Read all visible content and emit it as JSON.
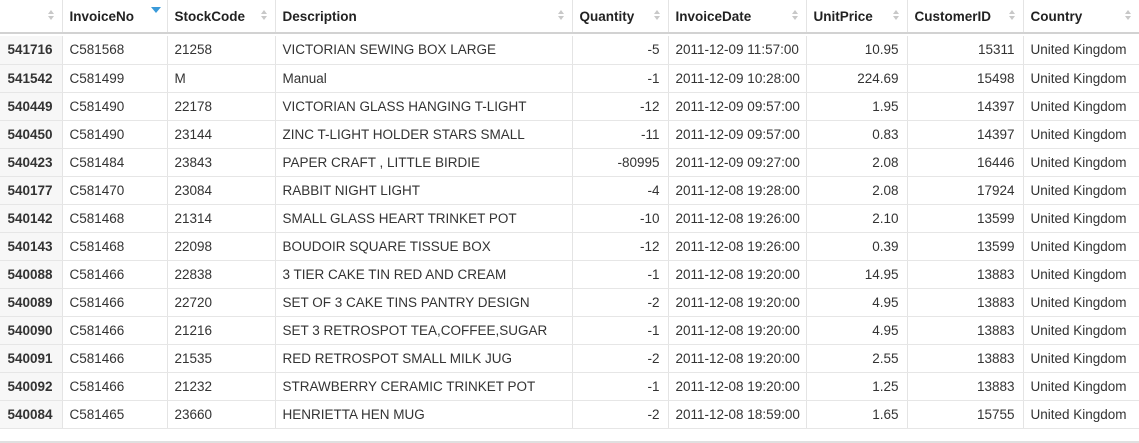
{
  "columns": [
    "",
    "InvoiceNo",
    "StockCode",
    "Description",
    "Quantity",
    "InvoiceDate",
    "UnitPrice",
    "CustomerID",
    "Country"
  ],
  "sorted_column": "InvoiceNo",
  "sort_indicator_color": "#3a9ad9",
  "rows": [
    [
      "541716",
      "C581568",
      "21258",
      "VICTORIAN SEWING BOX LARGE",
      "-5",
      "2011-12-09 11:57:00",
      "10.95",
      "15311",
      "United Kingdom"
    ],
    [
      "541542",
      "C581499",
      "M",
      "Manual",
      "-1",
      "2011-12-09 10:28:00",
      "224.69",
      "15498",
      "United Kingdom"
    ],
    [
      "540449",
      "C581490",
      "22178",
      "VICTORIAN GLASS HANGING T-LIGHT",
      "-12",
      "2011-12-09 09:57:00",
      "1.95",
      "14397",
      "United Kingdom"
    ],
    [
      "540450",
      "C581490",
      "23144",
      "ZINC T-LIGHT HOLDER STARS SMALL",
      "-11",
      "2011-12-09 09:57:00",
      "0.83",
      "14397",
      "United Kingdom"
    ],
    [
      "540423",
      "C581484",
      "23843",
      "PAPER CRAFT , LITTLE BIRDIE",
      "-80995",
      "2011-12-09 09:27:00",
      "2.08",
      "16446",
      "United Kingdom"
    ],
    [
      "540177",
      "C581470",
      "23084",
      "RABBIT NIGHT LIGHT",
      "-4",
      "2011-12-08 19:28:00",
      "2.08",
      "17924",
      "United Kingdom"
    ],
    [
      "540142",
      "C581468",
      "21314",
      "SMALL GLASS HEART TRINKET POT",
      "-10",
      "2011-12-08 19:26:00",
      "2.10",
      "13599",
      "United Kingdom"
    ],
    [
      "540143",
      "C581468",
      "22098",
      "BOUDOIR SQUARE TISSUE BOX",
      "-12",
      "2011-12-08 19:26:00",
      "0.39",
      "13599",
      "United Kingdom"
    ],
    [
      "540088",
      "C581466",
      "22838",
      "3 TIER CAKE TIN RED AND CREAM",
      "-1",
      "2011-12-08 19:20:00",
      "14.95",
      "13883",
      "United Kingdom"
    ],
    [
      "540089",
      "C581466",
      "22720",
      "SET OF 3 CAKE TINS PANTRY DESIGN",
      "-2",
      "2011-12-08 19:20:00",
      "4.95",
      "13883",
      "United Kingdom"
    ],
    [
      "540090",
      "C581466",
      "21216",
      "SET 3 RETROSPOT TEA,COFFEE,SUGAR",
      "-1",
      "2011-12-08 19:20:00",
      "4.95",
      "13883",
      "United Kingdom"
    ],
    [
      "540091",
      "C581466",
      "21535",
      "RED RETROSPOT SMALL MILK JUG",
      "-2",
      "2011-12-08 19:20:00",
      "2.55",
      "13883",
      "United Kingdom"
    ],
    [
      "540092",
      "C581466",
      "21232",
      "STRAWBERRY CERAMIC TRINKET POT",
      "-1",
      "2011-12-08 19:20:00",
      "1.25",
      "13883",
      "United Kingdom"
    ],
    [
      "540084",
      "C581465",
      "23660",
      "HENRIETTA HEN MUG",
      "-2",
      "2011-12-08 18:59:00",
      "1.65",
      "15755",
      "United Kingdom"
    ]
  ]
}
